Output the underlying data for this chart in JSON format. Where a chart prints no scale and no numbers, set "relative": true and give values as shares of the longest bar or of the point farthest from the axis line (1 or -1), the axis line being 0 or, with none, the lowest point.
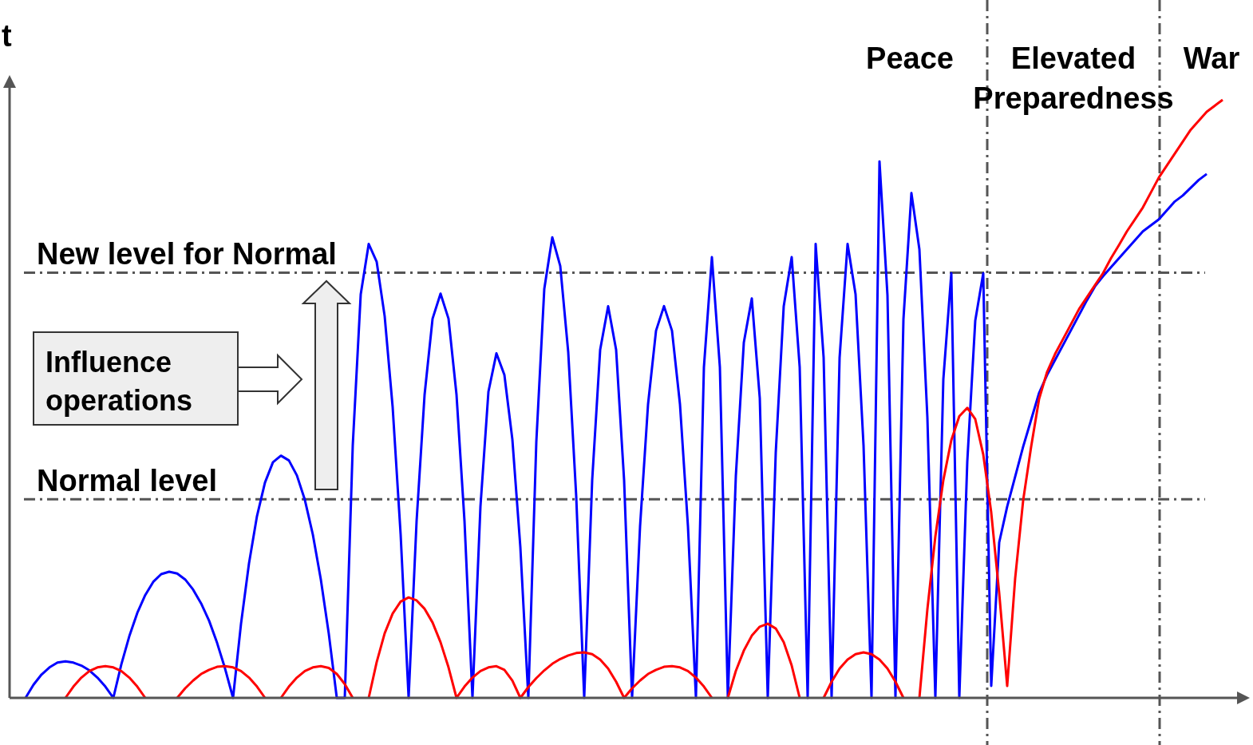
{
  "chart_data": {
    "type": "line",
    "ylabel": "t",
    "relative": true,
    "categories": [
      null,
      null,
      null,
      null,
      null,
      null,
      null,
      null,
      null,
      null,
      null,
      null,
      null,
      null,
      null,
      null,
      null,
      null,
      null,
      null,
      null,
      null,
      null,
      null,
      null,
      null,
      null,
      null,
      null,
      null,
      null,
      null,
      null,
      null,
      null,
      null,
      null,
      null,
      null,
      null,
      null,
      null,
      null,
      null,
      null,
      null,
      null,
      null,
      null,
      null,
      null,
      null,
      null,
      null,
      null,
      null,
      null,
      null,
      null,
      null,
      null,
      null,
      null,
      null,
      null,
      null,
      null,
      null,
      null,
      null,
      null,
      null,
      null,
      null,
      null,
      null,
      null,
      null,
      null,
      null,
      null,
      null,
      null,
      null,
      null,
      null,
      null,
      null,
      null,
      null,
      null,
      null,
      null,
      null,
      null,
      null,
      null,
      null,
      null,
      null,
      null,
      null,
      null,
      null,
      null,
      null,
      null,
      null,
      null,
      null,
      null,
      null,
      null,
      null,
      null,
      null,
      null,
      null,
      null,
      null,
      null,
      null,
      null,
      null,
      null,
      null,
      null,
      null,
      null,
      null,
      null,
      null,
      null,
      null,
      null,
      null,
      null,
      null,
      null,
      null,
      null,
      null,
      null,
      null,
      null,
      null,
      null,
      null,
      null,
      null,
      null,
      null,
      null,
      null
    ],
    "series": [
      {
        "color": "#0000ff",
        "values": [
          null,
          null,
          0,
          0.022,
          0.039,
          0.051,
          0.059,
          0.061,
          0.059,
          0.054,
          0.046,
          0.034,
          0.019,
          0,
          0.056,
          0.103,
          0.142,
          0.172,
          0.194,
          0.207,
          0.211,
          0.208,
          0.198,
          0.181,
          0.158,
          0.129,
          0.092,
          0.049,
          0,
          0.124,
          0.225,
          0.304,
          0.36,
          0.394,
          0.405,
          0.397,
          0.372,
          0.331,
          0.273,
          0.198,
          0.107,
          0,
          0,
          0.422,
          0.675,
          0.759,
          0.729,
          0.638,
          0.486,
          0.273,
          0,
          0.296,
          0.507,
          0.634,
          0.676,
          0.634,
          0.507,
          0.296,
          0,
          0.32,
          0.512,
          0.576,
          0.54,
          0.432,
          0.252,
          0,
          0.428,
          0.684,
          0.77,
          0.722,
          0.578,
          0.337,
          0,
          0.364,
          0.582,
          0.655,
          0.582,
          0.364,
          0,
          0.287,
          0.491,
          0.614,
          0.655,
          0.614,
          0.491,
          0.287,
          0,
          0.553,
          0.737,
          0.553,
          0,
          0.371,
          0.594,
          0.668,
          0.501,
          0,
          0.41,
          0.655,
          0.737,
          0.553,
          0,
          0.759,
          0.569,
          0,
          0.569,
          0.759,
          0.675,
          0.422,
          0,
          0.897,
          0.673,
          0,
          0.633,
          0.844,
          0.75,
          0.469,
          0,
          0.533,
          0.71,
          0,
          0.395,
          0.631,
          0.71,
          0.02,
          0.26,
          0.32,
          0.37,
          0.42,
          0.465,
          0.51,
          0.54,
          0.565,
          0.59,
          0.615,
          0.64,
          0.665,
          0.688,
          0.705,
          0.72,
          0.735,
          0.75,
          0.765,
          0.78,
          0.79,
          0.8,
          0.815,
          0.83,
          0.84,
          0.853,
          0.866,
          0.876,
          null,
          null,
          null
        ]
      },
      {
        "color": "#ff0000",
        "values": [
          null,
          null,
          null,
          null,
          null,
          null,
          null,
          0,
          0.019,
          0.034,
          0.045,
          0.051,
          0.053,
          0.051,
          0.045,
          0.034,
          0.019,
          0,
          null,
          null,
          null,
          0,
          0.016,
          0.029,
          0.04,
          0.047,
          0.052,
          0.053,
          0.051,
          0.045,
          0.034,
          0.019,
          0,
          null,
          0,
          0.019,
          0.034,
          0.045,
          0.051,
          0.053,
          0.05,
          0.04,
          0.023,
          0,
          null,
          0,
          0.06,
          0.108,
          0.141,
          0.161,
          0.168,
          0.163,
          0.149,
          0.126,
          0.093,
          0.051,
          0,
          0.019,
          0.034,
          0.045,
          0.051,
          0.053,
          0.047,
          0.029,
          0,
          0.018,
          0.033,
          0.046,
          0.057,
          0.065,
          0.071,
          0.075,
          0.076,
          0.073,
          0.064,
          0.049,
          0.027,
          0,
          0.016,
          0.029,
          0.04,
          0.047,
          0.052,
          0.053,
          0.051,
          0.045,
          0.034,
          0.019,
          0,
          null,
          0,
          0.045,
          0.079,
          0.104,
          0.119,
          0.124,
          0.116,
          0.093,
          0.054,
          0,
          null,
          null,
          0,
          0.027,
          0.049,
          0.064,
          0.073,
          0.076,
          0.073,
          0.064,
          0.049,
          0.027,
          0,
          null,
          0,
          0.148,
          0.27,
          0.364,
          0.431,
          0.471,
          0.485,
          0.466,
          0.407,
          0.31,
          0.175,
          0.02,
          0.2,
          0.33,
          0.42,
          0.5,
          0.545,
          0.575,
          0.6,
          0.625,
          0.65,
          0.67,
          0.69,
          0.71,
          0.735,
          0.757,
          0.78,
          0.8,
          0.82,
          0.845,
          0.87,
          0.89,
          0.91,
          0.93,
          0.95,
          0.965,
          0.98,
          0.99,
          1.0,
          null
        ]
      }
    ],
    "ref_lines": [
      {
        "axis": "y",
        "value": 0.332,
        "label": "Normal level",
        "color": "#555555",
        "line_style": "dashed"
      },
      {
        "axis": "y",
        "value": 0.711,
        "label": "New level for Normal",
        "color": "#555555",
        "line_style": "dashed"
      }
    ],
    "annotations": [
      "Influence operations",
      "Peace",
      "Elevated Preparedness",
      "War"
    ]
  }
}
